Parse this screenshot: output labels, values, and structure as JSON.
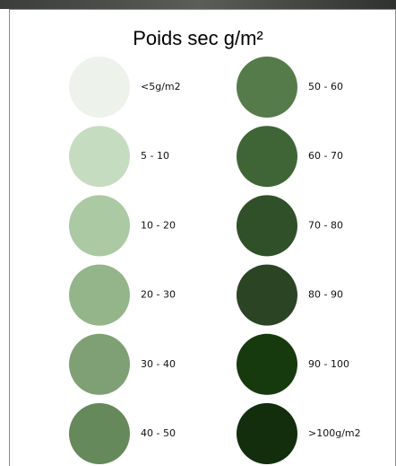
{
  "legend": {
    "title": "Poids sec g/m²",
    "items": [
      {
        "label": "<5g/m2",
        "color": "#edf3ea"
      },
      {
        "label": "5 - 10",
        "color": "#c6dcc0"
      },
      {
        "label": "10 - 20",
        "color": "#abc9a3"
      },
      {
        "label": "20 - 30",
        "color": "#93b589"
      },
      {
        "label": "30 - 40",
        "color": "#7fa074"
      },
      {
        "label": "40 - 50",
        "color": "#65895a"
      },
      {
        "label": "50 - 60",
        "color": "#567b4b"
      },
      {
        "label": "60 - 70",
        "color": "#3f6537"
      },
      {
        "label": "70 - 80",
        "color": "#30502a"
      },
      {
        "label": "80 - 90",
        "color": "#2b4424"
      },
      {
        "label": "90 - 100",
        "color": "#163a0e"
      },
      {
        "label": ">100g/m2",
        "color": "#122e0d"
      }
    ]
  }
}
